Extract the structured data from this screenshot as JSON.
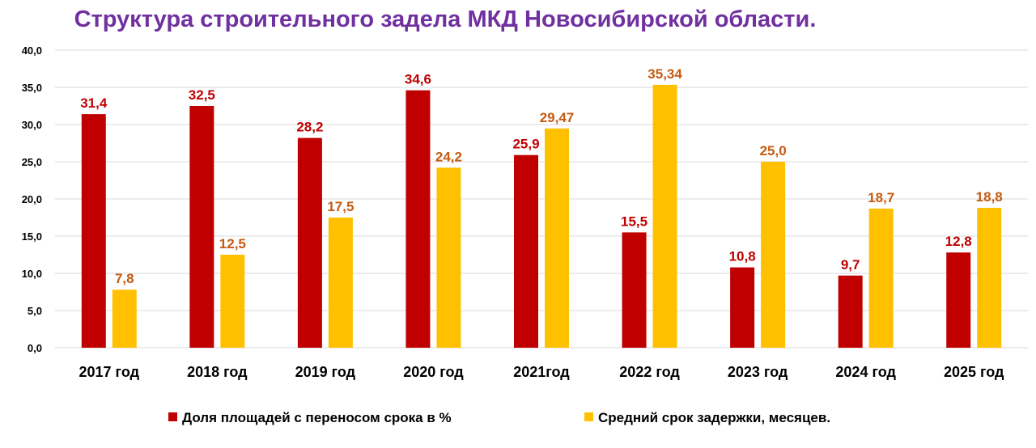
{
  "chart_data": {
    "type": "bar",
    "title": "Структура строительного задела МКД Новосибирской области.",
    "categories": [
      "2017 год",
      "2018 год",
      "2019 год",
      "2020 год",
      "2021год",
      "2022 год",
      "2023 год",
      "2024 год",
      "2025 год"
    ],
    "ylim": [
      0,
      40
    ],
    "yticks": [
      "0,0",
      "5,0",
      "10,0",
      "15,0",
      "20,0",
      "25,0",
      "30,0",
      "35,0",
      "40,0"
    ],
    "grid": true,
    "legend_position": "bottom",
    "series": [
      {
        "name": "Доля площадей с переносом срока в %",
        "color": "#C00000",
        "label_color": "#C00000",
        "values": [
          31.4,
          32.5,
          28.2,
          34.6,
          25.9,
          15.5,
          10.8,
          9.7,
          12.8
        ],
        "labels": [
          "31,4",
          "32,5",
          "28,2",
          "34,6",
          "25,9",
          "15,5",
          "10,8",
          "9,7",
          "12,8"
        ]
      },
      {
        "name": "Средний срок задержки, месяцев.",
        "color": "#FFC000",
        "label_color": "#C55A11",
        "values": [
          7.8,
          12.5,
          17.5,
          24.2,
          29.47,
          35.34,
          25.0,
          18.7,
          18.8
        ],
        "labels": [
          "7,8",
          "12,5",
          "17,5",
          "24,2",
          "29,47",
          "35,34",
          "25,0",
          "18,7",
          "18,8"
        ]
      }
    ]
  }
}
